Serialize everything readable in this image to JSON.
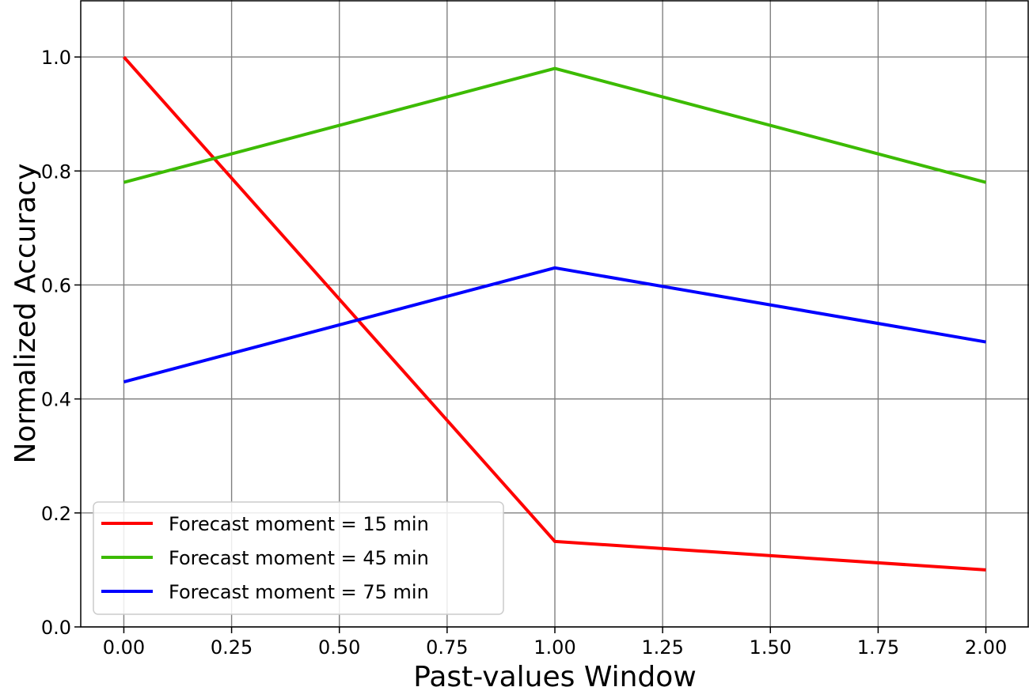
{
  "chart_data": {
    "type": "line",
    "title": "",
    "xlabel": "Past-values Window",
    "ylabel": "Normalized Accuracy",
    "xlim": [
      -0.1,
      2.1
    ],
    "ylim": [
      0.0,
      1.1
    ],
    "grid": true,
    "legend_position": "bottom-left",
    "x_ticks": [
      0.0,
      0.25,
      0.5,
      0.75,
      1.0,
      1.25,
      1.5,
      1.75,
      2.0
    ],
    "x_tick_labels": [
      "0.00",
      "0.25",
      "0.50",
      "0.75",
      "1.00",
      "1.25",
      "1.50",
      "1.75",
      "2.00"
    ],
    "y_ticks": [
      0.0,
      0.2,
      0.4,
      0.6,
      0.8,
      1.0
    ],
    "y_tick_labels": [
      "0.0",
      "0.2",
      "0.4",
      "0.6",
      "0.8",
      "1.0"
    ],
    "x": [
      0,
      1,
      2
    ],
    "series": [
      {
        "name": "Forecast moment = 15 min",
        "values": [
          1.0,
          0.15,
          0.1
        ],
        "color": "#ff0000"
      },
      {
        "name": "Forecast moment = 45 min",
        "values": [
          0.78,
          0.98,
          0.78
        ],
        "color": "#3cbb00"
      },
      {
        "name": "Forecast moment = 75 min",
        "values": [
          0.43,
          0.63,
          0.5
        ],
        "color": "#0000ff"
      }
    ]
  }
}
